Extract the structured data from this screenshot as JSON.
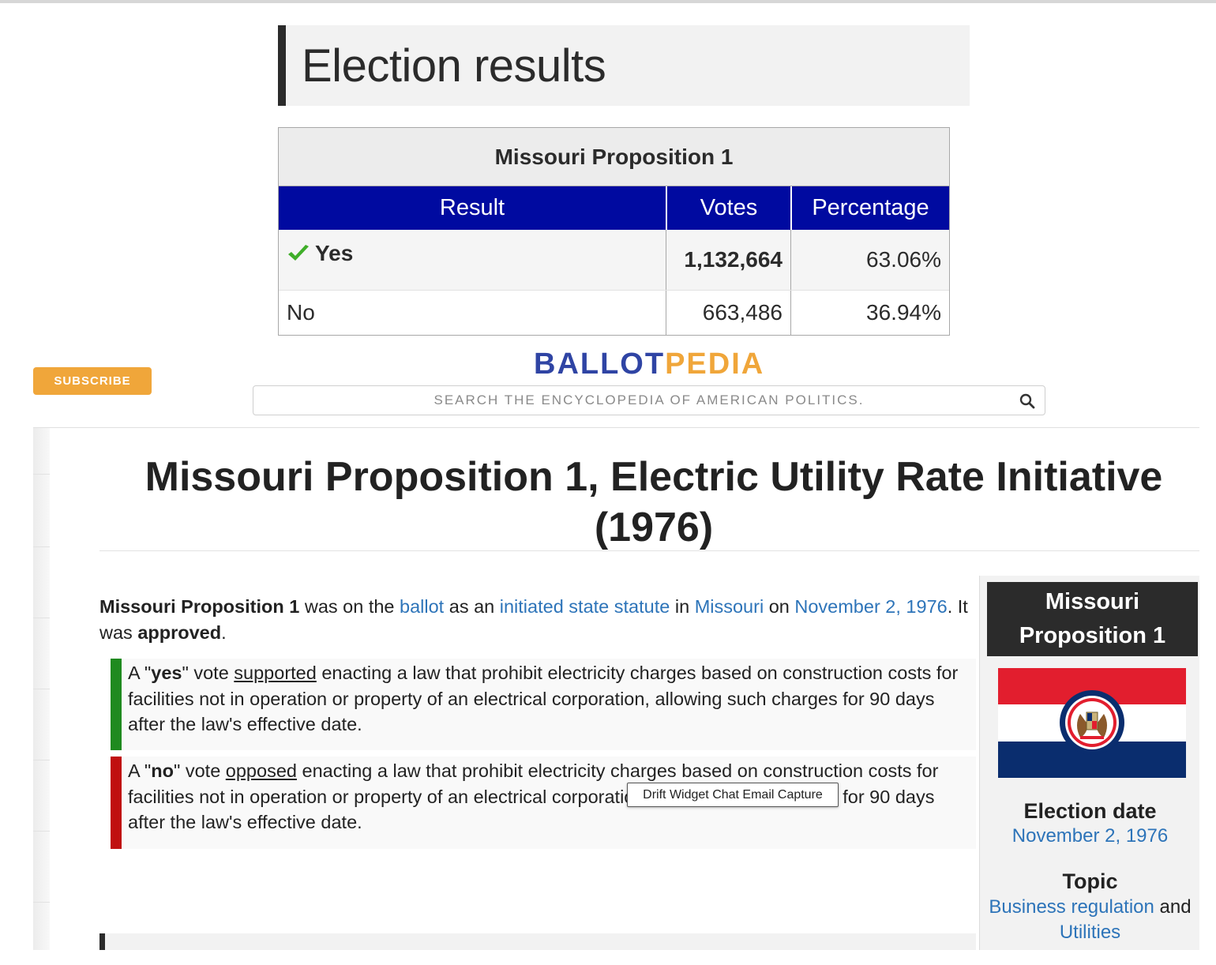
{
  "election_results": {
    "heading": "Election results",
    "table": {
      "caption": "Missouri Proposition 1",
      "columns": [
        "Result",
        "Votes",
        "Percentage"
      ],
      "rows": [
        {
          "result": "Yes",
          "votes": "1,132,664",
          "percentage": "63.06%",
          "approved": true
        },
        {
          "result": "No",
          "votes": "663,486",
          "percentage": "36.94%",
          "approved": false
        }
      ]
    }
  },
  "header": {
    "subscribe_label": "SUBSCRIBE",
    "logo_ballot": "BALLOT",
    "logo_pedia": "PEDIA",
    "search_placeholder": "SEARCH THE ENCYCLOPEDIA OF AMERICAN POLITICS."
  },
  "article": {
    "title": "Missouri Proposition 1, Electric Utility Rate Initiative (1976)",
    "intro": {
      "subject": "Missouri Proposition 1",
      "t1": " was on the ",
      "ballot_link": "ballot",
      "t2": " as an ",
      "statute_link": "initiated state statute",
      "t3": " in ",
      "state_link": "Missouri",
      "t4": " on ",
      "date_link": "November 2, 1976",
      "t5": ". It was ",
      "outcome": "approved",
      "t6": "."
    },
    "yes_vote": {
      "a": "A \"",
      "word": "yes",
      "b": "\" vote ",
      "verb": "supported",
      "text": " enacting a law that prohibit electricity charges based on construction costs for facilities not in operation or property of an electrical corporation, allowing such charges for 90 days after the law's effective date."
    },
    "no_vote": {
      "a": "A \"",
      "word": "no",
      "b": "\" vote ",
      "verb": "opposed",
      "text": " enacting a law that prohibit electricity charges based on construction costs for facilities not in operation or property of an electrical corporation, allowing such charges for 90 days after the law's effective date."
    },
    "tooltip": "Drift Widget Chat Email Capture"
  },
  "infobox": {
    "title": "Missouri Proposition 1",
    "election_date_label": "Election date",
    "election_date": "November 2, 1976",
    "topic_label": "Topic",
    "topic_1": "Business regulation",
    "topic_and": " and",
    "topic_2": "Utilities"
  },
  "colors": {
    "table_header": "#000aa0",
    "yes_bar": "#1f8a1f",
    "no_bar": "#c01010",
    "link": "#2d74b9",
    "subscribe": "#f0a63a",
    "logo_blue": "#2f44a4",
    "logo_orange": "#f0a63a",
    "flag_red": "#e21e2e",
    "flag_blue": "#0a2d6e"
  },
  "icons": [
    "check-icon",
    "search-icon",
    "missouri-flag"
  ]
}
